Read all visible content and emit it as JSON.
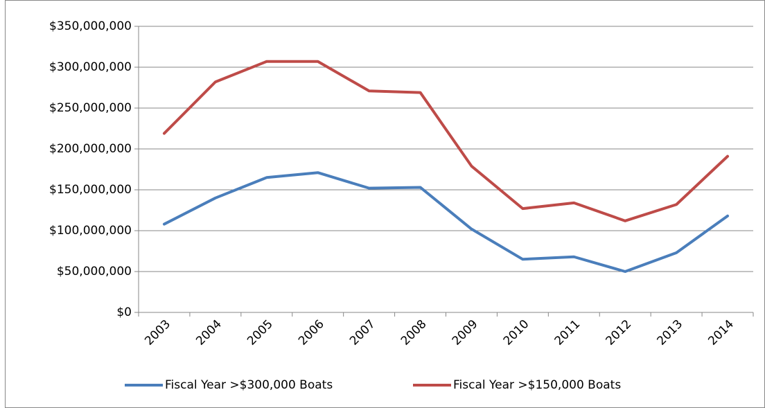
{
  "chart_data": {
    "type": "line",
    "categories": [
      "2003",
      "2004",
      "2005",
      "2006",
      "2007",
      "2008",
      "2009",
      "2010",
      "2011",
      "2012",
      "2013",
      "2014"
    ],
    "series": [
      {
        "name": "Fiscal Year >$300,000 Boats",
        "color": "#4a7ebb",
        "values": [
          108000000,
          140000000,
          165000000,
          171000000,
          152000000,
          153000000,
          102000000,
          65000000,
          68000000,
          50000000,
          73000000,
          118000000
        ]
      },
      {
        "name": "Fiscal Year >$150,000 Boats",
        "color": "#be4b48",
        "values": [
          219000000,
          282000000,
          307000000,
          307000000,
          271000000,
          269000000,
          179000000,
          127000000,
          134000000,
          112000000,
          132000000,
          191000000
        ]
      }
    ],
    "ylim": [
      0,
      350000000
    ],
    "yticks": [
      {
        "value": 0,
        "label": "$0"
      },
      {
        "value": 50000000,
        "label": "$50,000,000"
      },
      {
        "value": 100000000,
        "label": "$100,000,000"
      },
      {
        "value": 150000000,
        "label": "$150,000,000"
      },
      {
        "value": 200000000,
        "label": "$200,000,000"
      },
      {
        "value": 250000000,
        "label": "$250,000,000"
      },
      {
        "value": 300000000,
        "label": "$300,000,000"
      },
      {
        "value": 350000000,
        "label": "$350,000,000"
      }
    ],
    "grid": true,
    "legend": "bottom"
  }
}
